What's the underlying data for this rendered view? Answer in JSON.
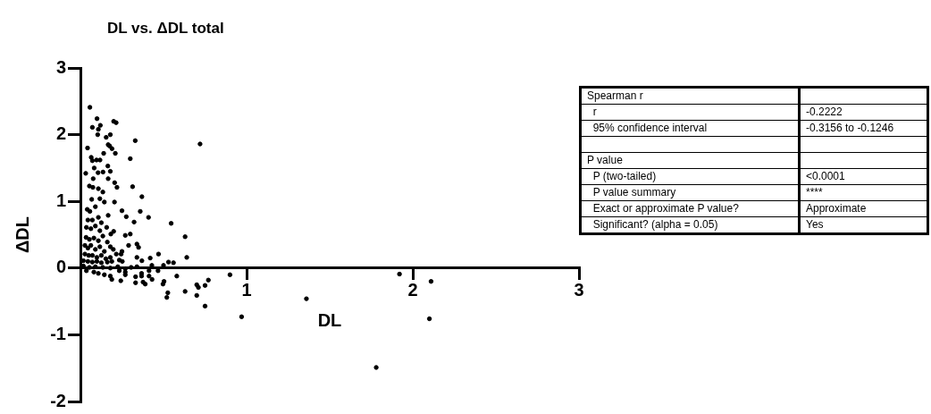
{
  "chart_data": {
    "type": "scatter",
    "title": "DL vs. ΔDL total",
    "xlabel": "DL",
    "ylabel": "ΔDL",
    "color": "#000000",
    "marker": "circle",
    "grid": false,
    "xlim": [
      0,
      3
    ],
    "xticks": [
      {
        "value": 0,
        "label": null
      },
      1,
      2,
      3
    ],
    "ylim": [
      -2,
      3
    ],
    "yticks": [
      -2,
      -1,
      0,
      1,
      2,
      3
    ],
    "x": [
      0.057,
      0.1,
      0.072,
      0.12,
      0.108,
      0.104,
      0.2,
      0.215,
      0.18,
      0.155,
      0.33,
      0.72,
      0.167,
      0.176,
      0.043,
      0.19,
      0.14,
      0.21,
      0.3,
      0.065,
      0.072,
      0.097,
      0.118,
      0.165,
      0.032,
      0.083,
      0.106,
      0.136,
      0.18,
      0.167,
      0.077,
      0.206,
      0.22,
      0.314,
      0.054,
      0.075,
      0.108,
      0.135,
      0.068,
      0.117,
      0.144,
      0.205,
      0.37,
      0.041,
      0.057,
      0.09,
      0.25,
      0.36,
      0.276,
      0.41,
      0.167,
      0.045,
      0.072,
      0.108,
      0.126,
      0.323,
      0.546,
      0.036,
      0.063,
      0.09,
      0.117,
      0.158,
      0.2,
      0.183,
      0.27,
      0.3,
      0.63,
      0.034,
      0.054,
      0.081,
      0.108,
      0.135,
      0.162,
      0.29,
      0.34,
      0.35,
      0.027,
      0.045,
      0.063,
      0.09,
      0.117,
      0.144,
      0.18,
      0.198,
      0.25,
      0.245,
      0.027,
      0.05,
      0.072,
      0.099,
      0.126,
      0.153,
      0.18,
      0.216,
      0.64,
      0.47,
      0.34,
      0.42,
      0.018,
      0.045,
      0.072,
      0.099,
      0.126,
      0.162,
      0.189,
      0.234,
      0.252,
      0.37,
      0.43,
      0.5,
      0.53,
      0.56,
      0.018,
      0.054,
      0.09,
      0.135,
      0.18,
      0.225,
      0.27,
      0.305,
      0.34,
      0.036,
      0.081,
      0.108,
      0.144,
      0.18,
      0.234,
      0.27,
      0.27,
      0.189,
      0.243,
      0.332,
      0.368,
      0.368,
      0.413,
      0.467,
      0.413,
      0.431,
      0.332,
      0.377,
      0.39,
      0.503,
      0.497,
      0.58,
      0.526,
      0.52,
      0.63,
      0.7,
      0.71,
      0.7,
      0.75,
      0.77,
      0.75,
      0.9,
      0.97,
      1.36,
      1.92,
      2.11,
      2.1,
      1.78
    ],
    "values": [
      2.41,
      2.24,
      2.11,
      2.14,
      2.08,
      2.0,
      2.2,
      2.18,
      2.0,
      1.96,
      1.91,
      1.86,
      1.85,
      1.83,
      1.8,
      1.79,
      1.72,
      1.72,
      1.64,
      1.66,
      1.61,
      1.62,
      1.62,
      1.53,
      1.42,
      1.5,
      1.43,
      1.44,
      1.45,
      1.34,
      1.34,
      1.28,
      1.21,
      1.22,
      1.23,
      1.21,
      1.19,
      1.14,
      1.03,
      1.04,
      0.99,
      0.99,
      1.07,
      0.88,
      0.85,
      0.92,
      0.86,
      0.85,
      0.77,
      0.76,
      0.79,
      0.72,
      0.72,
      0.76,
      0.68,
      0.69,
      0.67,
      0.61,
      0.59,
      0.63,
      0.56,
      0.61,
      0.55,
      0.51,
      0.49,
      0.51,
      0.47,
      0.46,
      0.43,
      0.45,
      0.41,
      0.48,
      0.39,
      0.34,
      0.36,
      0.31,
      0.34,
      0.3,
      0.34,
      0.28,
      0.32,
      0.25,
      0.32,
      0.28,
      0.25,
      0.21,
      0.21,
      0.19,
      0.19,
      0.16,
      0.19,
      0.14,
      0.16,
      0.21,
      0.16,
      0.21,
      0.16,
      0.15,
      0.11,
      0.1,
      0.09,
      0.1,
      0.08,
      0.09,
      0.1,
      0.12,
      0.1,
      0.11,
      0.04,
      0.04,
      0.09,
      0.08,
      0.03,
      0.01,
      0.02,
      0.01,
      0.0,
      0.02,
      -0.01,
      0.01,
      0.02,
      -0.04,
      -0.06,
      -0.08,
      -0.1,
      -0.12,
      -0.04,
      -0.1,
      -0.06,
      -0.17,
      -0.19,
      -0.13,
      -0.08,
      -0.12,
      -0.04,
      -0.04,
      -0.12,
      -0.17,
      -0.22,
      -0.21,
      -0.24,
      -0.2,
      -0.24,
      -0.12,
      -0.37,
      -0.44,
      -0.35,
      -0.25,
      -0.29,
      -0.41,
      -0.26,
      -0.18,
      -0.57,
      -0.1,
      -0.73,
      -0.46,
      -0.09,
      -0.2,
      -0.76,
      -1.49
    ],
    "annotations": [
      "Spearman r",
      "r",
      "-0.2222",
      "95% confidence interval",
      "-0.3156 to -0.1246",
      "P value",
      "P (two-tailed)",
      "<0.0001",
      "P value summary",
      "****",
      "Exact or approximate P value?",
      "Approximate",
      "Significant? (alpha = 0.05)",
      "Yes"
    ]
  }
}
